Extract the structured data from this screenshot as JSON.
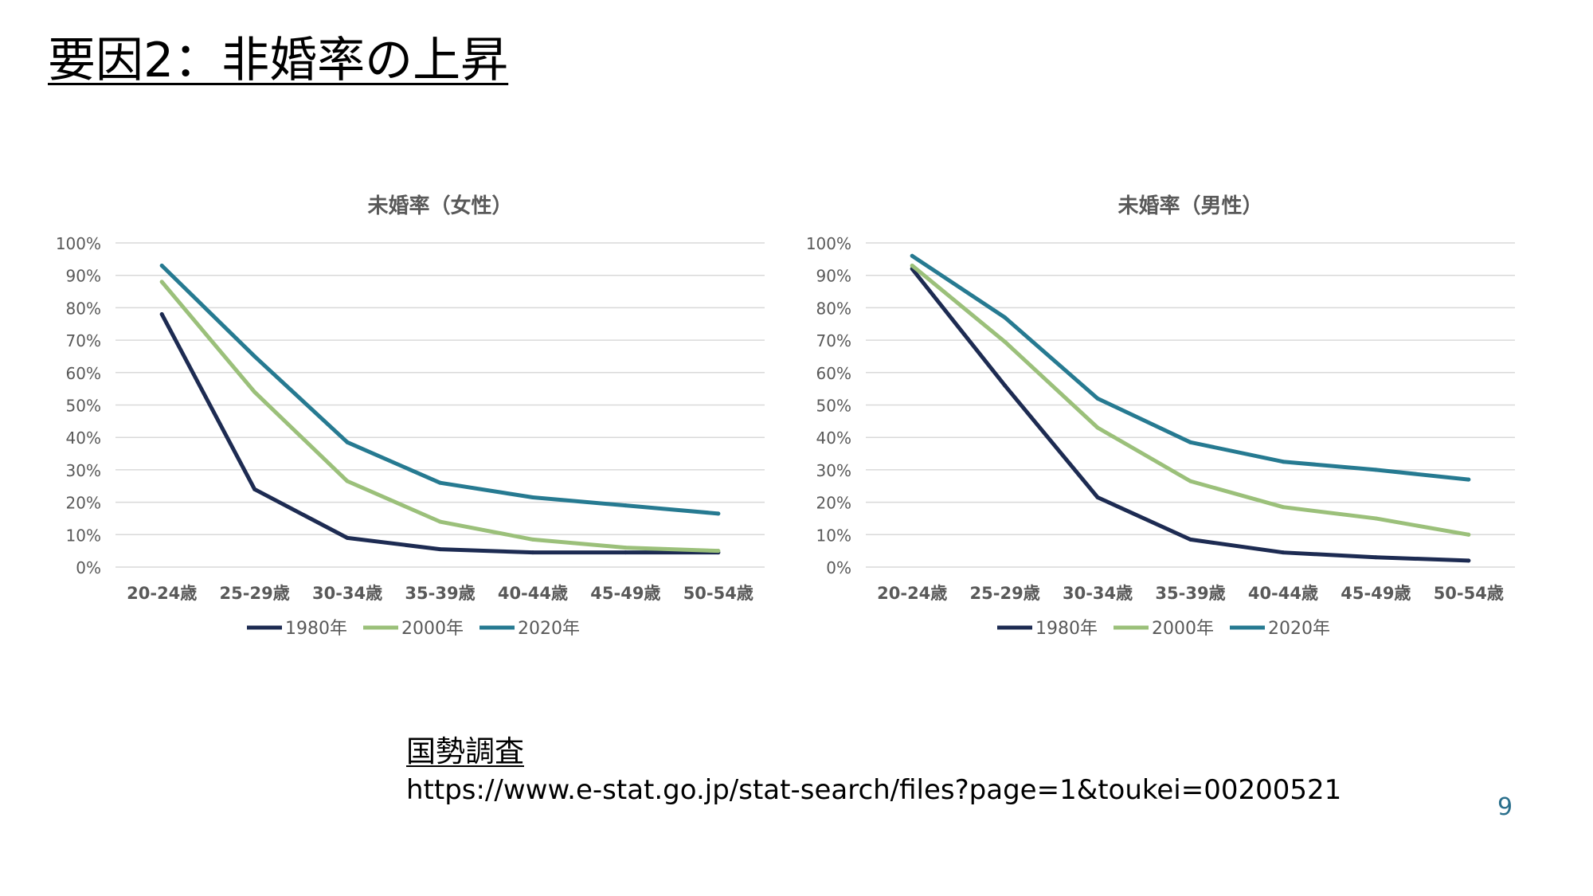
{
  "slide": {
    "title": "要因2：非婚率の上昇",
    "source_label": "国勢調査",
    "source_url": "https://www.e-stat.go.jp/stat-search/files?page=1&toukei=00200521",
    "page_number": "9"
  },
  "colors": {
    "1980年": "#1d2b52",
    "2000年": "#9bc07a",
    "2020年": "#267a91",
    "gridline": "#d9d9d9",
    "axis_text": "#595959"
  },
  "chart_data": [
    {
      "type": "line",
      "title": "未婚率（女性）",
      "categories": [
        "20-24歳",
        "25-29歳",
        "30-34歳",
        "35-39歳",
        "40-44歳",
        "45-49歳",
        "50-54歳"
      ],
      "yticks": [
        "0%",
        "10%",
        "20%",
        "30%",
        "40%",
        "50%",
        "60%",
        "70%",
        "80%",
        "90%",
        "100%"
      ],
      "ylim": [
        0,
        100
      ],
      "grid": true,
      "legend": "bottom",
      "series": [
        {
          "name": "1980年",
          "values": [
            78,
            24,
            9,
            5.5,
            4.5,
            4.5,
            4.5
          ]
        },
        {
          "name": "2000年",
          "values": [
            88,
            54,
            26.5,
            14,
            8.5,
            6,
            5
          ]
        },
        {
          "name": "2020年",
          "values": [
            93,
            65,
            38.5,
            26,
            21.5,
            19,
            16.5
          ]
        }
      ]
    },
    {
      "type": "line",
      "title": "未婚率（男性）",
      "categories": [
        "20-24歳",
        "25-29歳",
        "30-34歳",
        "35-39歳",
        "40-44歳",
        "45-49歳",
        "50-54歳"
      ],
      "yticks": [
        "0%",
        "10%",
        "20%",
        "30%",
        "40%",
        "50%",
        "60%",
        "70%",
        "80%",
        "90%",
        "100%"
      ],
      "ylim": [
        0,
        100
      ],
      "grid": true,
      "legend": "bottom",
      "series": [
        {
          "name": "1980年",
          "values": [
            92,
            56,
            21.5,
            8.5,
            4.5,
            3,
            2
          ]
        },
        {
          "name": "2000年",
          "values": [
            93,
            69.5,
            43,
            26.5,
            18.5,
            15,
            10
          ]
        },
        {
          "name": "2020年",
          "values": [
            96,
            77,
            52,
            38.5,
            32.5,
            30,
            27
          ]
        }
      ]
    }
  ]
}
